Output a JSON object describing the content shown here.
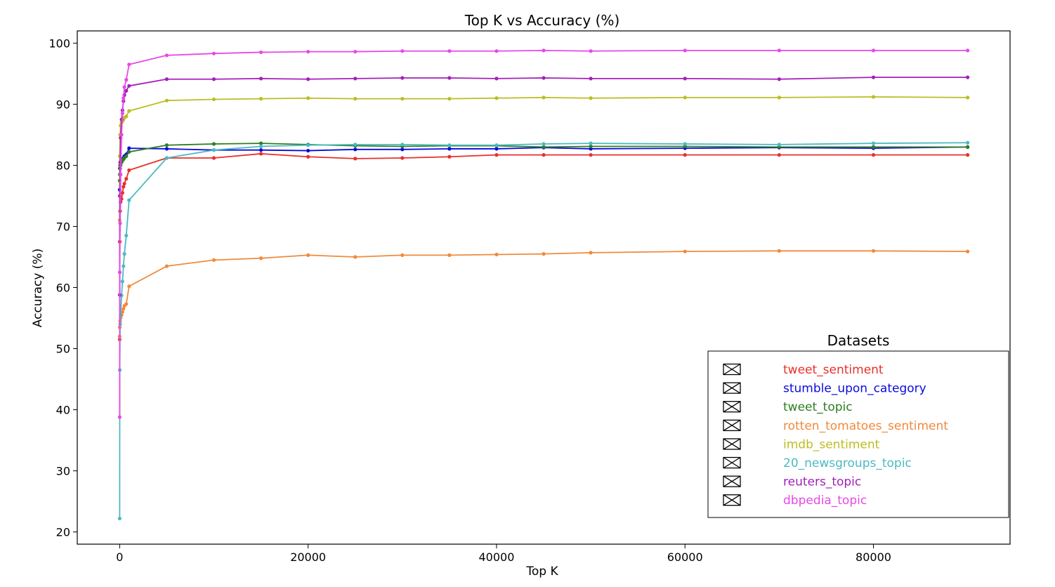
{
  "chart_data": {
    "type": "line",
    "title": "Top K vs Accuracy (%)",
    "xlabel": "Top K",
    "ylabel": "Accuracy (%)",
    "xlim": [
      -4500,
      94500
    ],
    "ylim": [
      18,
      102
    ],
    "xticks": [
      0,
      20000,
      40000,
      60000,
      80000
    ],
    "yticks": [
      20,
      30,
      40,
      50,
      60,
      70,
      80,
      90,
      100
    ],
    "grid": false,
    "legend": {
      "title": "Datasets",
      "placement": "lower-right",
      "marker": "boxed-x"
    },
    "x": [
      1,
      10,
      50,
      100,
      200,
      300,
      400,
      500,
      700,
      1000,
      5000,
      10000,
      15000,
      20000,
      25000,
      30000,
      35000,
      40000,
      45000,
      50000,
      60000,
      70000,
      80000,
      90000
    ],
    "series": [
      {
        "name": "tweet_sentiment",
        "color": "#e8302a",
        "values": [
          51.5,
          67.5,
          72.5,
          74.0,
          74.5,
          75.5,
          76.5,
          77.0,
          77.8,
          79.2,
          81.2,
          81.2,
          81.9,
          81.4,
          81.1,
          81.2,
          81.4,
          81.7,
          81.7,
          81.7,
          81.7,
          81.7,
          81.7,
          81.7
        ]
      },
      {
        "name": "stumble_upon_category",
        "color": "#0a0ae0",
        "values": [
          76.0,
          79.5,
          80.0,
          80.5,
          80.8,
          81.0,
          81.2,
          81.5,
          81.8,
          82.8,
          82.7,
          82.5,
          82.5,
          82.4,
          82.6,
          82.6,
          82.7,
          82.7,
          82.9,
          82.7,
          82.8,
          82.9,
          82.8,
          83.0
        ]
      },
      {
        "name": "tweet_topic",
        "color": "#2e7d22",
        "values": [
          77.5,
          78.5,
          79.5,
          80.0,
          80.5,
          80.8,
          81.0,
          81.2,
          81.5,
          82.2,
          83.3,
          83.5,
          83.6,
          83.4,
          83.2,
          83.1,
          83.2,
          83.2,
          83.0,
          83.1,
          83.1,
          83.0,
          83.0,
          83.0
        ]
      },
      {
        "name": "rotten_tomatoes_sentiment",
        "color": "#f08a3c",
        "values": [
          52.0,
          53.5,
          54.5,
          55.0,
          55.5,
          56.0,
          56.5,
          57.0,
          57.3,
          60.2,
          63.5,
          64.5,
          64.8,
          65.3,
          65.0,
          65.3,
          65.3,
          65.4,
          65.5,
          65.7,
          65.9,
          66.0,
          66.0,
          65.9
        ]
      },
      {
        "name": "imdb_sentiment",
        "color": "#bcbd22",
        "values": [
          71.0,
          81.5,
          85.0,
          86.5,
          87.0,
          87.2,
          87.5,
          87.8,
          88.0,
          88.9,
          90.6,
          90.8,
          90.9,
          91.0,
          90.9,
          90.9,
          90.9,
          91.0,
          91.1,
          91.0,
          91.1,
          91.1,
          91.2,
          91.1
        ]
      },
      {
        "name": "20_newsgroups_topic",
        "color": "#4bbac2",
        "values": [
          22.2,
          46.5,
          54.0,
          55.5,
          58.7,
          61.0,
          63.5,
          65.5,
          68.5,
          74.3,
          81.2,
          82.5,
          83.1,
          83.3,
          83.4,
          83.4,
          83.3,
          83.3,
          83.5,
          83.6,
          83.5,
          83.4,
          83.6,
          83.7
        ]
      },
      {
        "name": "reuters_topic",
        "color": "#a321b8",
        "values": [
          58.8,
          75.0,
          80.5,
          84.5,
          87.5,
          89.0,
          90.5,
          91.5,
          92.2,
          93.0,
          94.1,
          94.1,
          94.2,
          94.1,
          94.2,
          94.3,
          94.3,
          94.2,
          94.3,
          94.2,
          94.2,
          94.1,
          94.4,
          94.4
        ]
      },
      {
        "name": "dbpedia_topic",
        "color": "#e848e8",
        "values": [
          38.8,
          62.5,
          70.5,
          78.5,
          85.0,
          88.5,
          91.0,
          92.8,
          94.0,
          96.5,
          98.0,
          98.3,
          98.5,
          98.6,
          98.6,
          98.7,
          98.7,
          98.7,
          98.8,
          98.7,
          98.8,
          98.8,
          98.8,
          98.8
        ]
      }
    ]
  }
}
